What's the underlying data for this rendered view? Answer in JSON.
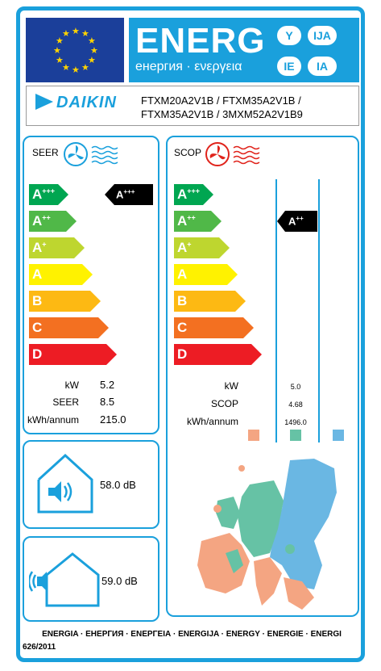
{
  "header": {
    "title": "ENERG",
    "subtitle": "енергия · ενεργεια",
    "badges": [
      "Y",
      "IJA",
      "IE",
      "IA"
    ]
  },
  "brand": {
    "name": "DAIKIN",
    "model_line1": "FTXM20A2V1B / FTXM35A2V1B /",
    "model_line2": "FTXM35A2V1B / 3MXM52A2V1B9"
  },
  "cooling": {
    "label": "SEER",
    "classes": [
      {
        "letter": "A",
        "plus": "+++",
        "color": "#00a651"
      },
      {
        "letter": "A",
        "plus": "++",
        "color": "#50b848"
      },
      {
        "letter": "A",
        "plus": "+",
        "color": "#bed62f"
      },
      {
        "letter": "A",
        "plus": "",
        "color": "#fff200"
      },
      {
        "letter": "B",
        "plus": "",
        "color": "#fdb913"
      },
      {
        "letter": "C",
        "plus": "",
        "color": "#f37021"
      },
      {
        "letter": "D",
        "plus": "",
        "color": "#ed1c24"
      }
    ],
    "rating": {
      "letter": "A",
      "plus": "+++"
    },
    "specs": [
      {
        "label": "kW",
        "value": "5.2"
      },
      {
        "label": "SEER",
        "value": "8.5"
      },
      {
        "label": "kWh/annum",
        "value": "215.0"
      }
    ]
  },
  "heating": {
    "label": "SCOP",
    "classes": [
      {
        "letter": "A",
        "plus": "+++",
        "color": "#00a651"
      },
      {
        "letter": "A",
        "plus": "++",
        "color": "#50b848"
      },
      {
        "letter": "A",
        "plus": "+",
        "color": "#bed62f"
      },
      {
        "letter": "A",
        "plus": "",
        "color": "#fff200"
      },
      {
        "letter": "B",
        "plus": "",
        "color": "#fdb913"
      },
      {
        "letter": "C",
        "plus": "",
        "color": "#f37021"
      },
      {
        "letter": "D",
        "plus": "",
        "color": "#ed1c24"
      }
    ],
    "rating": {
      "letter": "A",
      "plus": "++"
    },
    "specs": [
      {
        "label": "kW",
        "value": "5.0"
      },
      {
        "label": "SCOP",
        "value": "4.68"
      },
      {
        "label": "kWh/annum",
        "value": "1496.0"
      }
    ],
    "zone_colors": [
      "#f4a582",
      "#66c2a5",
      "#6ab7e3"
    ]
  },
  "noise": {
    "indoor": {
      "value": "58.0",
      "unit": "dB"
    },
    "outdoor": {
      "value": "59.0",
      "unit": "dB"
    }
  },
  "footer": {
    "languages": "ENERGIA · ЕНЕРГИЯ · ΕΝΕΡΓΕΙΑ · ENERGIJA · ENERGY · ENERGIE · ENERGI",
    "regulation": "626/2011"
  }
}
